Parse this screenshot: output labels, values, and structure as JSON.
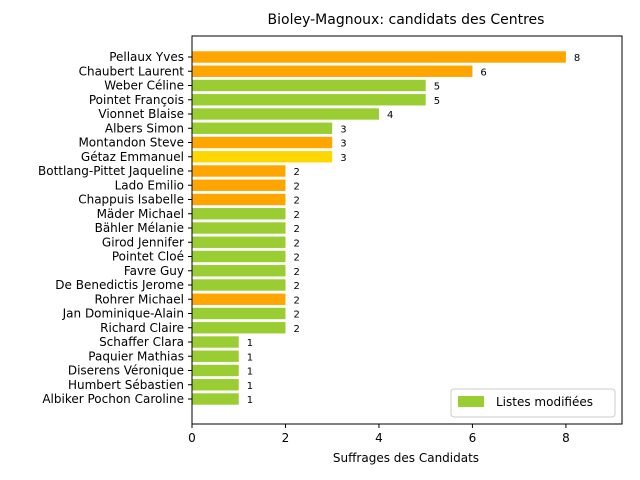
{
  "chart_data": {
    "type": "bar",
    "orientation": "horizontal",
    "title": "Bioley-Magnoux: candidats des Centres",
    "xlabel": "Suffrages des Candidats",
    "ylabel": "",
    "xlim": [
      0,
      9.2
    ],
    "xticks": [
      0,
      2,
      4,
      6,
      8
    ],
    "grid": false,
    "legend": {
      "position": "lower-right",
      "entries": [
        {
          "label": "Listes modifiées",
          "color": "#9acd32"
        }
      ]
    },
    "bars": [
      {
        "name": "Pellaux Yves",
        "value": 8,
        "color": "#ffa500"
      },
      {
        "name": "Chaubert Laurent",
        "value": 6,
        "color": "#ffa500"
      },
      {
        "name": "Weber Céline",
        "value": 5,
        "color": "#9acd32"
      },
      {
        "name": "Pointet François",
        "value": 5,
        "color": "#9acd32"
      },
      {
        "name": "Vionnet Blaise",
        "value": 4,
        "color": "#9acd32"
      },
      {
        "name": "Albers Simon",
        "value": 3,
        "color": "#9acd32"
      },
      {
        "name": "Montandon Steve",
        "value": 3,
        "color": "#ffa500"
      },
      {
        "name": "Gétaz Emmanuel",
        "value": 3,
        "color": "#ffd700"
      },
      {
        "name": "Bottlang-Pittet Jaqueline",
        "value": 2,
        "color": "#ffa500"
      },
      {
        "name": "Lado Emilio",
        "value": 2,
        "color": "#ffa500"
      },
      {
        "name": "Chappuis Isabelle",
        "value": 2,
        "color": "#ffa500"
      },
      {
        "name": "Mäder Michael",
        "value": 2,
        "color": "#9acd32"
      },
      {
        "name": "Bähler Mélanie",
        "value": 2,
        "color": "#9acd32"
      },
      {
        "name": "Girod Jennifer",
        "value": 2,
        "color": "#9acd32"
      },
      {
        "name": "Pointet Cloé",
        "value": 2,
        "color": "#9acd32"
      },
      {
        "name": "Favre Guy",
        "value": 2,
        "color": "#9acd32"
      },
      {
        "name": "De Benedictis Jerome",
        "value": 2,
        "color": "#9acd32"
      },
      {
        "name": "Rohrer Michael",
        "value": 2,
        "color": "#ffa500"
      },
      {
        "name": "Jan Dominique-Alain",
        "value": 2,
        "color": "#9acd32"
      },
      {
        "name": "Richard Claire",
        "value": 2,
        "color": "#9acd32"
      },
      {
        "name": "Schaffer Clara",
        "value": 1,
        "color": "#9acd32"
      },
      {
        "name": "Paquier Mathias",
        "value": 1,
        "color": "#9acd32"
      },
      {
        "name": "Diserens Véronique",
        "value": 1,
        "color": "#9acd32"
      },
      {
        "name": "Humbert Sébastien",
        "value": 1,
        "color": "#9acd32"
      },
      {
        "name": "Albiker Pochon Caroline",
        "value": 1,
        "color": "#9acd32"
      }
    ]
  }
}
